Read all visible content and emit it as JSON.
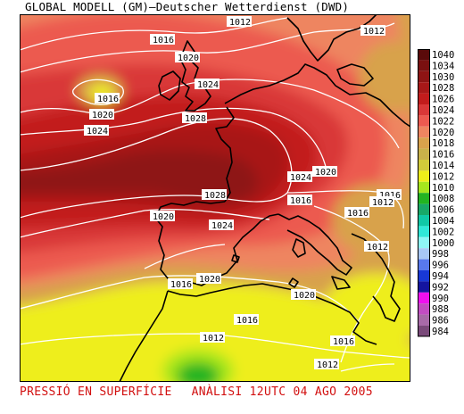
{
  "header": {
    "title": "GLOBAL MODELL (GM)—Deutscher Wetterdienst (DWD)"
  },
  "footer": {
    "left": "PRESSIÓ EN SUPERFÍCIE",
    "right": "ANÀLISI 12UTC 04 AGO 2005"
  },
  "legend": {
    "levels": [
      {
        "value": "1040",
        "color": "#5a0a0a"
      },
      {
        "value": "1034",
        "color": "#7a1010"
      },
      {
        "value": "1030",
        "color": "#8e1414"
      },
      {
        "value": "1028",
        "color": "#a81818"
      },
      {
        "value": "1026",
        "color": "#c21c1c"
      },
      {
        "value": "1024",
        "color": "#d93838"
      },
      {
        "value": "1022",
        "color": "#ec5a50"
      },
      {
        "value": "1020",
        "color": "#ee8560"
      },
      {
        "value": "1018",
        "color": "#d8a24c"
      },
      {
        "value": "1016",
        "color": "#c8b24a"
      },
      {
        "value": "1014",
        "color": "#d2cc3a"
      },
      {
        "value": "1012",
        "color": "#eeee1a"
      },
      {
        "value": "1010",
        "color": "#a6e61e"
      },
      {
        "value": "1008",
        "color": "#22b422"
      },
      {
        "value": "1006",
        "color": "#18a868"
      },
      {
        "value": "1004",
        "color": "#10c8a6"
      },
      {
        "value": "1002",
        "color": "#30e8d8"
      },
      {
        "value": "1000",
        "color": "#8ef6f6"
      },
      {
        "value": "998",
        "color": "#a8c8f6"
      },
      {
        "value": "996",
        "color": "#5878ec"
      },
      {
        "value": "994",
        "color": "#1838d6"
      },
      {
        "value": "992",
        "color": "#1414a0"
      },
      {
        "value": "990",
        "color": "#ee10ee"
      },
      {
        "value": "988",
        "color": "#c24cc2"
      },
      {
        "value": "986",
        "color": "#a86aa8"
      },
      {
        "value": "984",
        "color": "#7a4a7a"
      }
    ]
  },
  "isobar_labels": [
    {
      "name": "label-1012-north",
      "text": "1012"
    },
    {
      "name": "label-1012-northeast",
      "text": "1012"
    },
    {
      "name": "label-1016-north",
      "text": "1016"
    },
    {
      "name": "label-1020-north",
      "text": "1020"
    },
    {
      "name": "label-1016-atlantic",
      "text": "1016"
    },
    {
      "name": "label-1020-atlantic",
      "text": "1020"
    },
    {
      "name": "label-1024-atlantic",
      "text": "1024"
    },
    {
      "name": "label-1024-north",
      "text": "1024"
    },
    {
      "name": "label-1028-north",
      "text": "1028"
    },
    {
      "name": "label-1024-alps",
      "text": "1024"
    },
    {
      "name": "label-1020-alps",
      "text": "1020"
    },
    {
      "name": "label-1016-gulf",
      "text": "1016"
    },
    {
      "name": "label-1016-italy",
      "text": "1016"
    },
    {
      "name": "label-1012-adriatic",
      "text": "1012"
    },
    {
      "name": "label-1016-balkans",
      "text": "1016"
    },
    {
      "name": "label-1012-balkans",
      "text": "1012"
    },
    {
      "name": "label-1028-biscay",
      "text": "1028"
    },
    {
      "name": "label-1020-iberia",
      "text": "1020"
    },
    {
      "name": "label-1024-iberia",
      "text": "1024"
    },
    {
      "name": "label-1016-portugal",
      "text": "1016"
    },
    {
      "name": "label-1020-gibraltar",
      "text": "1020"
    },
    {
      "name": "label-1020-med",
      "text": "1020"
    },
    {
      "name": "label-1016-africa",
      "text": "1016"
    },
    {
      "name": "label-1016-east",
      "text": "1016"
    },
    {
      "name": "label-1012-africa",
      "text": "1012"
    },
    {
      "name": "label-1012-south",
      "text": "1012"
    }
  ]
}
